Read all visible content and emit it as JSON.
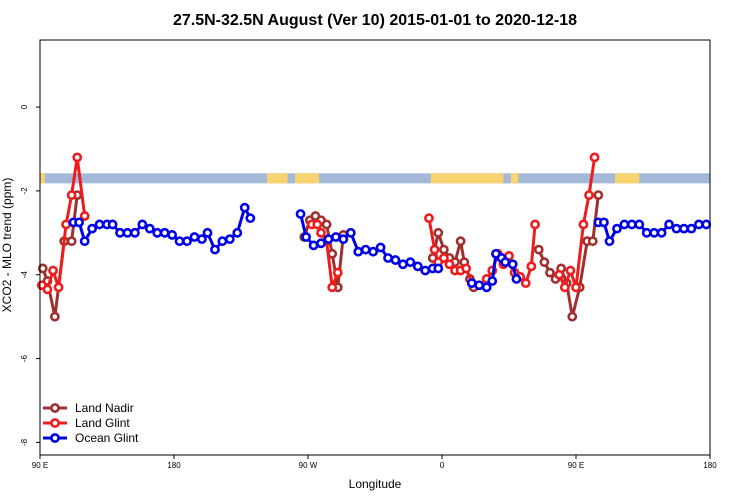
{
  "chart_data": {
    "type": "line",
    "title": "27.5N-32.5N August (Ver 10)   2015-01-01 to 2020-12-18",
    "xlabel": "Longitude",
    "ylabel": "XCO2 - MLO trend (ppm)",
    "xlim": [
      -90,
      270
    ],
    "ylim": [
      -8.3,
      1.6
    ],
    "x_ticks": [
      {
        "value": -90,
        "label": "90 E"
      },
      {
        "value": -18,
        "label": "180"
      },
      {
        "value": 54,
        "label": "90 W"
      },
      {
        "value": 126,
        "label": "0"
      },
      {
        "value": 198,
        "label": "90 E"
      },
      {
        "value": 270,
        "label": "180"
      }
    ],
    "y_ticks": [
      {
        "value": 0,
        "label": "0"
      },
      {
        "value": -2,
        "label": "-2"
      },
      {
        "value": -4,
        "label": "-4"
      },
      {
        "value": -6,
        "label": "-6"
      },
      {
        "value": -8,
        "label": "-8"
      }
    ],
    "legend_position": "bottom-left",
    "land_ocean_band": {
      "y_range": [
        -1.82,
        -1.58
      ],
      "ocean_color": "#a4b8d8",
      "land_color": "#f8d470",
      "land_segments": [
        [
          -90,
          -87.5
        ],
        [
          32,
          43
        ],
        [
          47,
          60
        ],
        [
          120,
          159
        ],
        [
          163,
          167
        ],
        [
          219,
          232
        ]
      ]
    },
    "series": [
      {
        "name": "Land Nadir",
        "color": "#a0302e",
        "segments": [
          [
            [
              -88.5,
              -3.85
            ],
            [
              -86,
              -4.15
            ],
            [
              -82,
              -5.0
            ],
            [
              -77,
              -3.2
            ],
            [
              -73,
              -3.2
            ],
            [
              -70,
              -2.1
            ]
          ],
          [
            [
              52,
              -3.1
            ],
            [
              55,
              -2.7
            ],
            [
              58,
              -2.6
            ],
            [
              61,
              -2.7
            ],
            [
              64,
              -2.8
            ],
            [
              67,
              -3.5
            ],
            [
              70,
              -4.3
            ],
            [
              73,
              -3.05
            ]
          ],
          [
            [
              121,
              -3.6
            ],
            [
              124,
              -3.0
            ],
            [
              127,
              -3.4
            ],
            [
              130,
              -3.6
            ],
            [
              133,
              -3.7
            ],
            [
              136,
              -3.2
            ],
            [
              138,
              -3.7
            ],
            [
              141,
              -4.1
            ],
            [
              143,
              -4.3
            ]
          ],
          [
            [
              178,
              -3.4
            ],
            [
              181,
              -3.7
            ],
            [
              184,
              -3.95
            ],
            [
              187,
              -4.1
            ],
            [
              190,
              -3.85
            ],
            [
              193,
              -4.2
            ],
            [
              196,
              -5.0
            ],
            [
              200,
              -4.3
            ],
            [
              204,
              -3.2
            ],
            [
              207,
              -3.2
            ],
            [
              210,
              -2.1
            ]
          ]
        ]
      },
      {
        "name": "Land Glint",
        "color": "#ee1c1c",
        "segments": [
          [
            [
              -89,
              -4.25
            ],
            [
              -86,
              -4.35
            ],
            [
              -83,
              -3.9
            ],
            [
              -80,
              -4.3
            ],
            [
              -76,
              -2.8
            ],
            [
              -73,
              -2.1
            ],
            [
              -70,
              -1.2
            ],
            [
              -66,
              -2.6
            ]
          ],
          [
            [
              56,
              -2.8
            ],
            [
              59,
              -2.8
            ],
            [
              61,
              -3.0
            ],
            [
              64,
              -3.2
            ],
            [
              67,
              -4.3
            ],
            [
              70,
              -3.95
            ]
          ],
          [
            [
              119,
              -2.65
            ],
            [
              122,
              -3.4
            ],
            [
              124,
              -3.7
            ],
            [
              127,
              -3.6
            ],
            [
              130,
              -3.75
            ],
            [
              133,
              -3.9
            ],
            [
              136,
              -3.9
            ],
            [
              139,
              -3.85
            ],
            [
              142,
              -4.2
            ]
          ],
          [
            [
              150,
              -4.1
            ],
            [
              153,
              -3.9
            ],
            [
              156,
              -3.5
            ],
            [
              159,
              -3.75
            ],
            [
              162,
              -3.55
            ],
            [
              165,
              -3.95
            ],
            [
              168,
              -4.05
            ],
            [
              171,
              -4.2
            ],
            [
              174,
              -3.8
            ],
            [
              176,
              -2.8
            ]
          ],
          [
            [
              189,
              -4.0
            ],
            [
              192,
              -4.3
            ],
            [
              195,
              -3.9
            ],
            [
              198,
              -4.3
            ],
            [
              202,
              -2.8
            ],
            [
              205,
              -2.1
            ],
            [
              208,
              -1.2
            ]
          ]
        ]
      },
      {
        "name": "Ocean Glint",
        "color": "#0000e6",
        "segments": [
          [
            [
              -72,
              -2.75
            ],
            [
              -69,
              -2.75
            ],
            [
              -66,
              -3.2
            ],
            [
              -62,
              -2.9
            ],
            [
              -58,
              -2.8
            ],
            [
              -54,
              -2.8
            ],
            [
              -51,
              -2.8
            ],
            [
              -47,
              -3.0
            ],
            [
              -43,
              -3.0
            ],
            [
              -39,
              -3.0
            ],
            [
              -35,
              -2.8
            ],
            [
              -31,
              -2.9
            ],
            [
              -27,
              -3.0
            ],
            [
              -23,
              -3.0
            ],
            [
              -19,
              -3.05
            ],
            [
              -15,
              -3.2
            ],
            [
              -11,
              -3.2
            ],
            [
              -7,
              -3.1
            ],
            [
              -3,
              -3.15
            ],
            [
              0,
              -3.0
            ],
            [
              4,
              -3.4
            ],
            [
              8,
              -3.2
            ],
            [
              12,
              -3.15
            ],
            [
              16,
              -3.0
            ],
            [
              20,
              -2.4
            ],
            [
              23,
              -2.65
            ]
          ],
          [
            [
              50,
              -2.55
            ],
            [
              53,
              -3.1
            ],
            [
              57,
              -3.3
            ],
            [
              61,
              -3.25
            ],
            [
              65,
              -3.15
            ],
            [
              69,
              -3.1
            ],
            [
              73,
              -3.15
            ],
            [
              77,
              -3.0
            ],
            [
              81,
              -3.45
            ],
            [
              85,
              -3.4
            ],
            [
              89,
              -3.45
            ],
            [
              93,
              -3.35
            ],
            [
              97,
              -3.6
            ],
            [
              101,
              -3.65
            ],
            [
              105,
              -3.75
            ],
            [
              109,
              -3.7
            ],
            [
              113,
              -3.8
            ],
            [
              117,
              -3.9
            ],
            [
              121,
              -3.85
            ],
            [
              124,
              -3.85
            ]
          ],
          [
            [
              142,
              -4.2
            ],
            [
              146,
              -4.25
            ],
            [
              150,
              -4.3
            ],
            [
              153,
              -4.15
            ],
            [
              155,
              -3.5
            ],
            [
              158,
              -3.6
            ],
            [
              160,
              -3.7
            ],
            [
              164,
              -3.75
            ],
            [
              166,
              -4.1
            ]
          ],
          [
            [
              210,
              -2.75
            ],
            [
              213,
              -2.75
            ],
            [
              216,
              -3.2
            ],
            [
              220,
              -2.9
            ],
            [
              224,
              -2.8
            ],
            [
              228,
              -2.8
            ],
            [
              232,
              -2.8
            ],
            [
              236,
              -3.0
            ],
            [
              240,
              -3.0
            ],
            [
              244,
              -3.0
            ],
            [
              248,
              -2.8
            ],
            [
              252,
              -2.9
            ],
            [
              256,
              -2.9
            ],
            [
              260,
              -2.9
            ],
            [
              264,
              -2.8
            ],
            [
              268,
              -2.8
            ]
          ]
        ]
      }
    ]
  }
}
